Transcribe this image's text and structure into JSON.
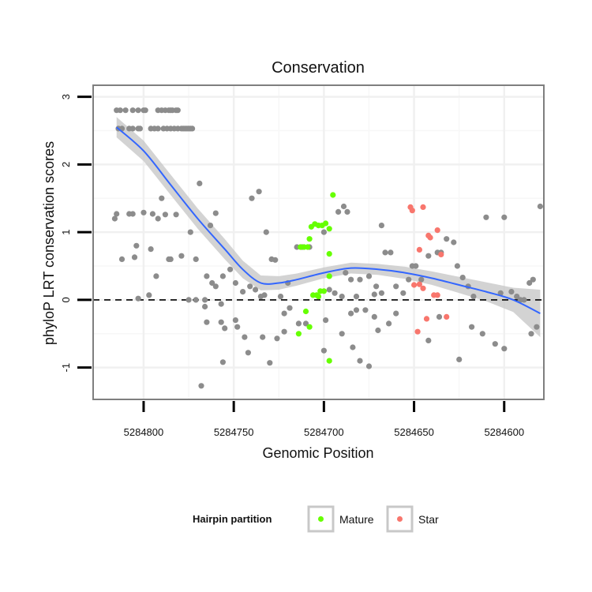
{
  "chart_data": {
    "type": "scatter",
    "title": "Conservation",
    "xlabel": "Genomic Position",
    "ylabel": "phyloP LRT conservation scores",
    "xlim": [
      5284828,
      5284578
    ],
    "x_reversed": true,
    "ylim": [
      -1.47,
      3.17
    ],
    "x_ticks": [
      5284800,
      5284750,
      5284700,
      5284650,
      5284600
    ],
    "x_tick_labels": [
      "5284800",
      "5284750",
      "5284700",
      "5284650",
      "5284600"
    ],
    "y_ticks": [
      -1,
      0,
      1,
      2,
      3
    ],
    "y_tick_labels": [
      "-1",
      "0",
      "1",
      "2",
      "3"
    ],
    "reference_line": {
      "y": 0,
      "style": "dashed",
      "color": "#000000"
    },
    "grid": true,
    "legend": {
      "title": "Hairpin partition",
      "position": "bottom",
      "entries": [
        {
          "label": "Mature",
          "color": "#66ff00"
        },
        {
          "label": "Star",
          "color": "#f8766d"
        }
      ]
    },
    "colors": {
      "other": "#8c8c8c",
      "smooth_line": "#3366ff",
      "ribbon": "#c8c8c8",
      "panel_border": "#7f7f7f"
    },
    "series": [
      {
        "name": "Other",
        "color": "#8c8c8c",
        "points": [
          [
            5284815,
            2.8
          ],
          [
            5284813,
            2.8
          ],
          [
            5284810,
            2.8
          ],
          [
            5284806,
            2.8
          ],
          [
            5284803,
            2.8
          ],
          [
            5284800,
            2.8
          ],
          [
            5284799,
            2.8
          ],
          [
            5284792,
            2.8
          ],
          [
            5284790,
            2.8
          ],
          [
            5284788,
            2.8
          ],
          [
            5284786,
            2.8
          ],
          [
            5284785,
            2.8
          ],
          [
            5284784,
            2.8
          ],
          [
            5284782,
            2.8
          ],
          [
            5284781,
            2.8
          ],
          [
            5284814,
            2.53
          ],
          [
            5284812,
            2.53
          ],
          [
            5284808,
            2.53
          ],
          [
            5284806,
            2.53
          ],
          [
            5284803,
            2.53
          ],
          [
            5284802,
            2.53
          ],
          [
            5284796,
            2.53
          ],
          [
            5284794,
            2.53
          ],
          [
            5284792,
            2.53
          ],
          [
            5284789,
            2.53
          ],
          [
            5284787,
            2.53
          ],
          [
            5284785,
            2.53
          ],
          [
            5284783,
            2.53
          ],
          [
            5284781,
            2.53
          ],
          [
            5284779,
            2.53
          ],
          [
            5284778,
            2.53
          ],
          [
            5284777,
            2.53
          ],
          [
            5284776,
            2.53
          ],
          [
            5284775,
            2.53
          ],
          [
            5284774,
            2.53
          ],
          [
            5284773,
            2.53
          ],
          [
            5284815,
            1.27
          ],
          [
            5284816,
            1.2
          ],
          [
            5284808,
            1.27
          ],
          [
            5284806,
            1.27
          ],
          [
            5284800,
            1.29
          ],
          [
            5284795,
            1.27
          ],
          [
            5284790,
            1.5
          ],
          [
            5284788,
            1.26
          ],
          [
            5284782,
            1.26
          ],
          [
            5284792,
            1.2
          ],
          [
            5284812,
            0.6
          ],
          [
            5284804,
            0.8
          ],
          [
            5284805,
            0.63
          ],
          [
            5284796,
            0.75
          ],
          [
            5284786,
            0.6
          ],
          [
            5284785,
            0.6
          ],
          [
            5284779,
            0.65
          ],
          [
            5284793,
            0.35
          ],
          [
            5284803,
            0.02
          ],
          [
            5284797,
            0.07
          ],
          [
            5284774,
            1.0
          ],
          [
            5284771,
            0.6
          ],
          [
            5284769,
            1.72
          ],
          [
            5284763,
            1.1
          ],
          [
            5284760,
            1.28
          ],
          [
            5284765,
            0.35
          ],
          [
            5284762,
            0.25
          ],
          [
            5284760,
            0.2
          ],
          [
            5284766,
            0.0
          ],
          [
            5284771,
            0.0
          ],
          [
            5284775,
            0.0
          ],
          [
            5284766,
            -0.1
          ],
          [
            5284765,
            -0.33
          ],
          [
            5284756,
            0.35
          ],
          [
            5284752,
            0.45
          ],
          [
            5284749,
            0.25
          ],
          [
            5284745,
            0.12
          ],
          [
            5284741,
            0.2
          ],
          [
            5284738,
            0.15
          ],
          [
            5284735,
            0.05
          ],
          [
            5284733,
            0.07
          ],
          [
            5284729,
            0.6
          ],
          [
            5284727,
            0.59
          ],
          [
            5284740,
            1.5
          ],
          [
            5284736,
            1.6
          ],
          [
            5284732,
            1.0
          ],
          [
            5284757,
            -0.06
          ],
          [
            5284757,
            -0.33
          ],
          [
            5284755,
            -0.42
          ],
          [
            5284749,
            -0.3
          ],
          [
            5284748,
            -0.4
          ],
          [
            5284744,
            -0.55
          ],
          [
            5284742,
            -0.78
          ],
          [
            5284756,
            -0.92
          ],
          [
            5284734,
            -0.55
          ],
          [
            5284730,
            -0.93
          ],
          [
            5284768,
            -1.27
          ],
          [
            5284724,
            0.05
          ],
          [
            5284722,
            -0.2
          ],
          [
            5284720,
            0.25
          ],
          [
            5284715,
            0.78
          ],
          [
            5284708,
            0.78
          ],
          [
            5284712,
            0.78
          ],
          [
            5284700,
            1.0
          ],
          [
            5284697,
            0.15
          ],
          [
            5284694,
            0.1
          ],
          [
            5284692,
            1.3
          ],
          [
            5284689,
            1.38
          ],
          [
            5284687,
            1.3
          ],
          [
            5284685,
            0.3
          ],
          [
            5284682,
            0.05
          ],
          [
            5284680,
            0.3
          ],
          [
            5284675,
            0.35
          ],
          [
            5284671,
            0.2
          ],
          [
            5284668,
            0.1
          ],
          [
            5284666,
            0.7
          ],
          [
            5284663,
            0.7
          ],
          [
            5284660,
            0.2
          ],
          [
            5284656,
            0.1
          ],
          [
            5284653,
            0.3
          ],
          [
            5284651,
            0.5
          ],
          [
            5284649,
            0.5
          ],
          [
            5284646,
            0.3
          ],
          [
            5284642,
            0.65
          ],
          [
            5284637,
            0.7
          ],
          [
            5284635,
            0.7
          ],
          [
            5284632,
            0.9
          ],
          [
            5284628,
            0.85
          ],
          [
            5284626,
            0.5
          ],
          [
            5284623,
            0.33
          ],
          [
            5284620,
            0.2
          ],
          [
            5284617,
            0.05
          ],
          [
            5284610,
            1.22
          ],
          [
            5284600,
            1.22
          ],
          [
            5284596,
            0.12
          ],
          [
            5284593,
            0.05
          ],
          [
            5284591,
            0.0
          ],
          [
            5284589,
            0.0
          ],
          [
            5284586,
            0.25
          ],
          [
            5284584,
            0.3
          ],
          [
            5284580,
            1.38
          ],
          [
            5284582,
            -0.4
          ],
          [
            5284585,
            -0.5
          ],
          [
            5284600,
            -0.72
          ],
          [
            5284605,
            -0.65
          ],
          [
            5284612,
            -0.5
          ],
          [
            5284618,
            -0.4
          ],
          [
            5284625,
            -0.88
          ],
          [
            5284636,
            -0.25
          ],
          [
            5284642,
            -0.6
          ],
          [
            5284670,
            -0.45
          ],
          [
            5284672,
            -0.25
          ],
          [
            5284677,
            -0.15
          ],
          [
            5284680,
            -0.9
          ],
          [
            5284682,
            -0.15
          ],
          [
            5284685,
            -0.2
          ],
          [
            5284690,
            -0.5
          ],
          [
            5284684,
            -0.7
          ],
          [
            5284675,
            -0.98
          ],
          [
            5284700,
            -0.75
          ],
          [
            5284714,
            -0.35
          ],
          [
            5284710,
            -0.35
          ],
          [
            5284722,
            -0.47
          ],
          [
            5284726,
            -0.57
          ],
          [
            5284719,
            -0.12
          ],
          [
            5284699,
            -0.3
          ],
          [
            5284664,
            -0.35
          ],
          [
            5284660,
            -0.2
          ],
          [
            5284668,
            1.1
          ],
          [
            5284672,
            0.08
          ],
          [
            5284690,
            0.05
          ],
          [
            5284688,
            0.4
          ],
          [
            5284602,
            0.1
          ]
        ]
      },
      {
        "name": "Mature",
        "color": "#66ff00",
        "points": [
          [
            5284707,
            1.08
          ],
          [
            5284705,
            1.12
          ],
          [
            5284703,
            1.1
          ],
          [
            5284701,
            1.1
          ],
          [
            5284699,
            1.13
          ],
          [
            5284697,
            1.05
          ],
          [
            5284695,
            1.55
          ],
          [
            5284711,
            0.78
          ],
          [
            5284709,
            0.78
          ],
          [
            5284713,
            0.78
          ],
          [
            5284708,
            0.9
          ],
          [
            5284697,
            0.68
          ],
          [
            5284700,
            0.13
          ],
          [
            5284704,
            0.07
          ],
          [
            5284706,
            0.07
          ],
          [
            5284703,
            0.05
          ],
          [
            5284697,
            0.35
          ],
          [
            5284710,
            -0.17
          ],
          [
            5284708,
            -0.4
          ],
          [
            5284714,
            -0.5
          ],
          [
            5284697,
            -0.9
          ],
          [
            5284702,
            0.13
          ]
        ]
      },
      {
        "name": "Star",
        "color": "#f8766d",
        "points": [
          [
            5284652,
            1.37
          ],
          [
            5284651,
            1.32
          ],
          [
            5284645,
            1.37
          ],
          [
            5284642,
            0.95
          ],
          [
            5284641,
            0.92
          ],
          [
            5284637,
            1.03
          ],
          [
            5284650,
            0.22
          ],
          [
            5284647,
            0.23
          ],
          [
            5284645,
            0.17
          ],
          [
            5284643,
            -0.28
          ],
          [
            5284639,
            0.07
          ],
          [
            5284637,
            0.07
          ],
          [
            5284632,
            -0.25
          ],
          [
            5284648,
            -0.47
          ],
          [
            5284647,
            0.74
          ],
          [
            5284635,
            0.67
          ]
        ]
      }
    ],
    "smooth_fit": {
      "x": [
        5284815,
        5284800,
        5284785,
        5284770,
        5284755,
        5284745,
        5284735,
        5284725,
        5284715,
        5284700,
        5284685,
        5284670,
        5284655,
        5284640,
        5284625,
        5284610,
        5284595,
        5284580
      ],
      "y": [
        2.55,
        2.2,
        1.7,
        1.2,
        0.75,
        0.45,
        0.25,
        0.25,
        0.3,
        0.4,
        0.47,
        0.45,
        0.4,
        0.32,
        0.22,
        0.12,
        0.0,
        -0.2
      ],
      "lower": [
        2.4,
        2.05,
        1.55,
        1.05,
        0.6,
        0.32,
        0.14,
        0.15,
        0.21,
        0.32,
        0.39,
        0.37,
        0.31,
        0.22,
        0.1,
        -0.02,
        -0.18,
        -0.55
      ],
      "upper": [
        2.7,
        2.35,
        1.85,
        1.35,
        0.9,
        0.58,
        0.36,
        0.35,
        0.39,
        0.48,
        0.55,
        0.53,
        0.49,
        0.42,
        0.34,
        0.26,
        0.18,
        0.15
      ]
    }
  }
}
